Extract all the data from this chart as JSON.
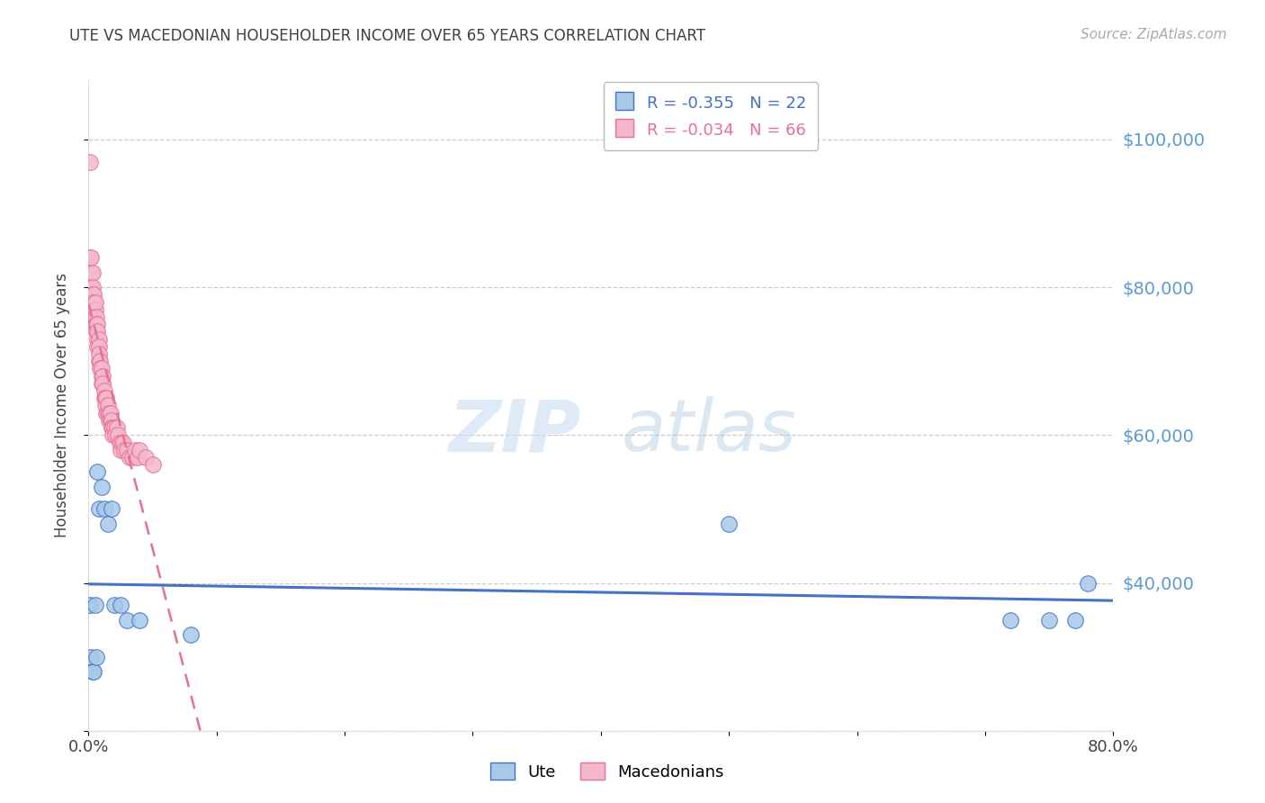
{
  "title": "UTE VS MACEDONIAN HOUSEHOLDER INCOME OVER 65 YEARS CORRELATION CHART",
  "source": "Source: ZipAtlas.com",
  "ylabel": "Householder Income Over 65 years",
  "watermark_zip": "ZIP",
  "watermark_atlas": "atlas",
  "ute_R": -0.355,
  "ute_N": 22,
  "mac_R": -0.034,
  "mac_N": 66,
  "ymin": 20000,
  "ymax": 108000,
  "xmin": 0.0,
  "xmax": 0.8,
  "ute_color": "#a8c8e8",
  "mac_color": "#f4b8cc",
  "ute_line_color": "#4472c4",
  "mac_line_color": "#e87090",
  "grid_color": "#cccccc",
  "title_color": "#404040",
  "right_axis_color": "#5b9bd5",
  "ute_scatter_x": [
    0.001,
    0.002,
    0.003,
    0.004,
    0.005,
    0.006,
    0.007,
    0.008,
    0.01,
    0.012,
    0.015,
    0.018,
    0.02,
    0.025,
    0.03,
    0.04,
    0.08,
    0.5,
    0.72,
    0.75,
    0.77,
    0.78
  ],
  "ute_scatter_y": [
    37000,
    30000,
    28000,
    28000,
    37000,
    30000,
    55000,
    50000,
    53000,
    50000,
    48000,
    50000,
    37000,
    37000,
    35000,
    35000,
    33000,
    48000,
    35000,
    35000,
    35000,
    40000
  ],
  "mac_scatter_x": [
    0.001,
    0.001,
    0.002,
    0.002,
    0.002,
    0.003,
    0.003,
    0.003,
    0.003,
    0.004,
    0.004,
    0.004,
    0.005,
    0.005,
    0.005,
    0.006,
    0.006,
    0.006,
    0.007,
    0.007,
    0.007,
    0.007,
    0.008,
    0.008,
    0.008,
    0.008,
    0.009,
    0.009,
    0.01,
    0.01,
    0.01,
    0.011,
    0.011,
    0.012,
    0.012,
    0.013,
    0.013,
    0.014,
    0.014,
    0.015,
    0.015,
    0.016,
    0.016,
    0.017,
    0.017,
    0.018,
    0.018,
    0.019,
    0.019,
    0.02,
    0.021,
    0.022,
    0.023,
    0.024,
    0.025,
    0.026,
    0.027,
    0.028,
    0.03,
    0.032,
    0.034,
    0.036,
    0.038,
    0.04,
    0.045,
    0.05
  ],
  "mac_scatter_y": [
    97000,
    84000,
    84000,
    82000,
    80000,
    82000,
    80000,
    79000,
    78000,
    79000,
    78000,
    76000,
    77000,
    75000,
    78000,
    76000,
    74000,
    75000,
    75000,
    73000,
    74000,
    72000,
    73000,
    72000,
    70000,
    71000,
    70000,
    69000,
    68000,
    67000,
    69000,
    68000,
    67000,
    66000,
    65000,
    65000,
    64000,
    65000,
    63000,
    63000,
    64000,
    63000,
    62000,
    62000,
    63000,
    62000,
    61000,
    61000,
    60000,
    61000,
    60000,
    61000,
    60000,
    59000,
    58000,
    59000,
    59000,
    58000,
    58000,
    57000,
    57000,
    58000,
    57000,
    58000,
    57000,
    56000
  ]
}
